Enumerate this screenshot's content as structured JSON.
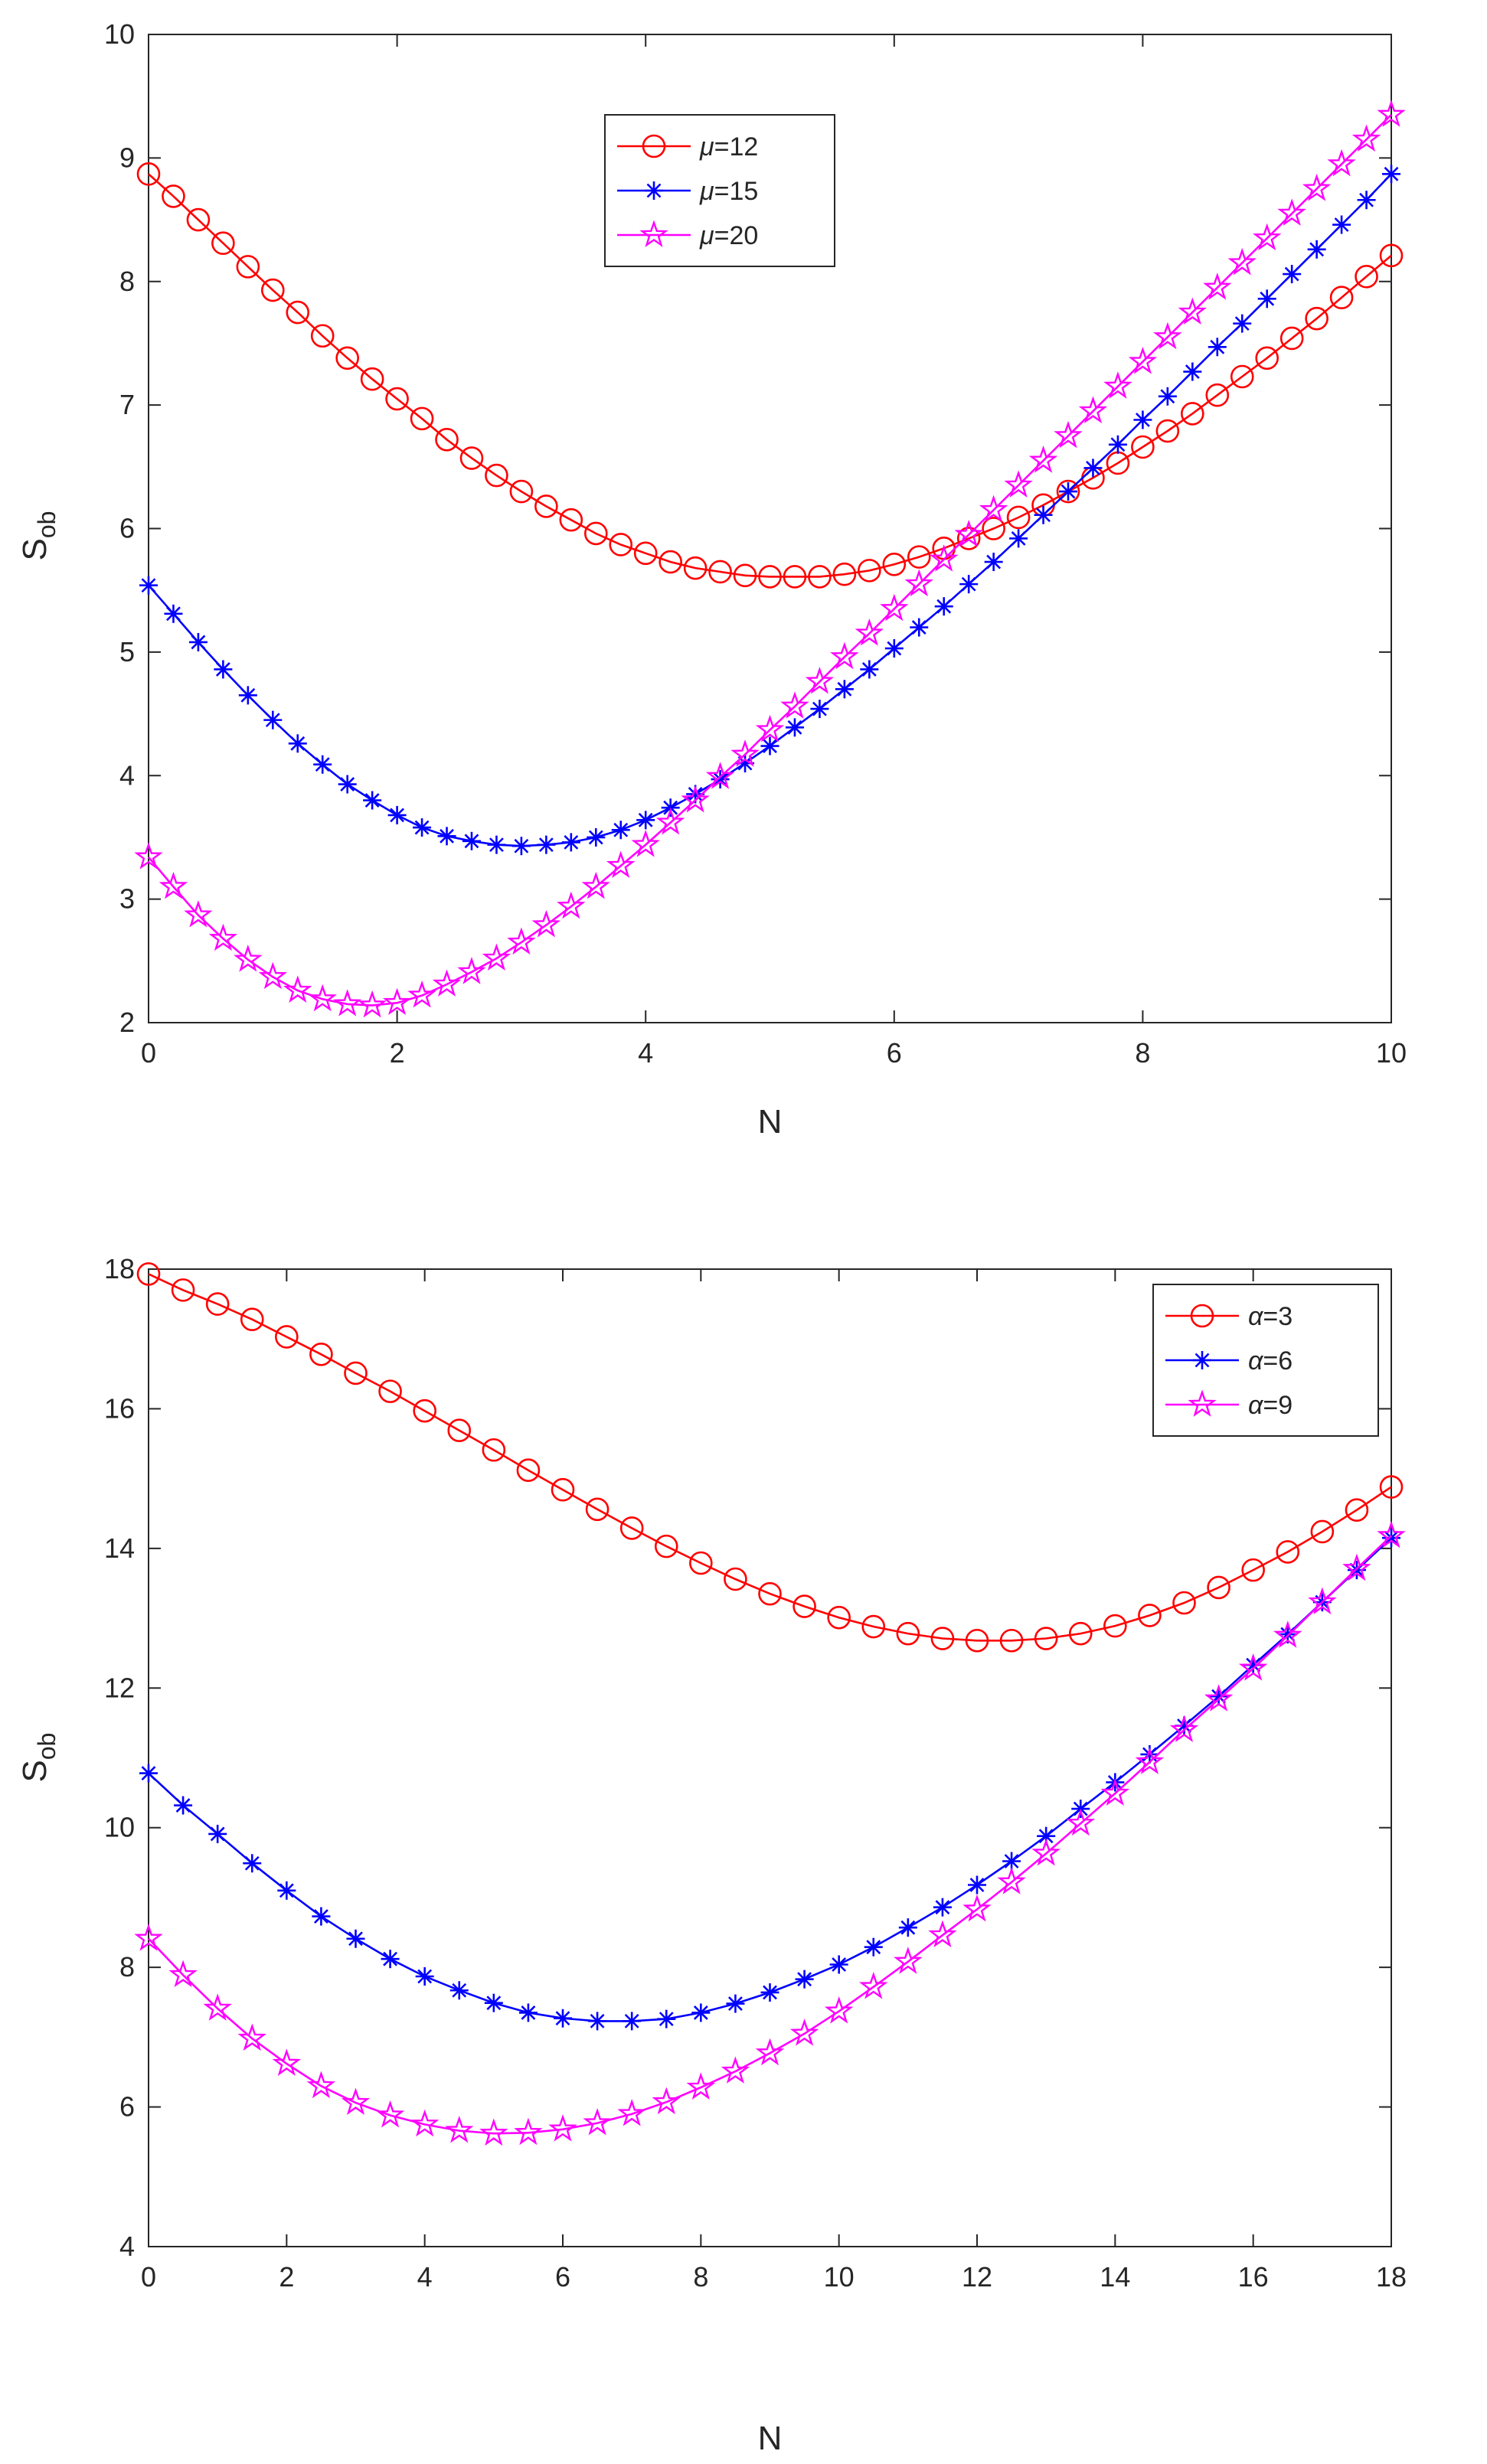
{
  "chart_data": [
    {
      "type": "line",
      "title": "",
      "xlabel": "N",
      "ylabel": "S",
      "ylabel_sub": "ob",
      "xlim": [
        0,
        10
      ],
      "ylim": [
        2,
        10
      ],
      "xticks": [
        0,
        2,
        4,
        6,
        8,
        10
      ],
      "yticks": [
        2,
        3,
        4,
        5,
        6,
        7,
        8,
        9,
        10
      ],
      "xtick_labels": [
        "0",
        "2",
        "4",
        "6",
        "8",
        "10"
      ],
      "ytick_labels": [
        "2",
        "3",
        "4",
        "5",
        "6",
        "7",
        "8",
        "9",
        "10"
      ],
      "grid": false,
      "legend_position": "top-center",
      "x": [
        0,
        0.2,
        0.4,
        0.6,
        0.8,
        1,
        1.2,
        1.4,
        1.6,
        1.8,
        2,
        2.2,
        2.4,
        2.6,
        2.8,
        3,
        3.2,
        3.4,
        3.6,
        3.8,
        4,
        4.2,
        4.4,
        4.6,
        4.8,
        5,
        5.2,
        5.4,
        5.6,
        5.8,
        6,
        6.2,
        6.4,
        6.6,
        6.8,
        7,
        7.2,
        7.4,
        7.6,
        7.8,
        8,
        8.2,
        8.4,
        8.6,
        8.8,
        9,
        9.2,
        9.4,
        9.6,
        9.8,
        10
      ],
      "series": [
        {
          "name": "μ=12",
          "prefix": "μ",
          "suffix": "=12",
          "color": "#ff0000",
          "marker": "circle",
          "values": [
            8.87,
            8.69,
            8.5,
            8.31,
            8.12,
            7.93,
            7.75,
            7.56,
            7.38,
            7.21,
            7.05,
            6.89,
            6.72,
            6.57,
            6.43,
            6.3,
            6.18,
            6.07,
            5.96,
            5.87,
            5.8,
            5.73,
            5.68,
            5.65,
            5.62,
            5.61,
            5.61,
            5.61,
            5.63,
            5.66,
            5.71,
            5.77,
            5.84,
            5.92,
            6.0,
            6.09,
            6.19,
            6.3,
            6.41,
            6.53,
            6.66,
            6.79,
            6.93,
            7.08,
            7.23,
            7.38,
            7.54,
            7.7,
            7.87,
            8.04,
            8.21
          ]
        },
        {
          "name": "μ=15",
          "prefix": "μ",
          "suffix": "=15",
          "color": "#0000ff",
          "marker": "asterisk",
          "values": [
            5.54,
            5.31,
            5.08,
            4.86,
            4.65,
            4.45,
            4.26,
            4.09,
            3.93,
            3.8,
            3.68,
            3.58,
            3.51,
            3.47,
            3.44,
            3.43,
            3.44,
            3.46,
            3.5,
            3.56,
            3.64,
            3.74,
            3.85,
            3.97,
            4.1,
            4.24,
            4.39,
            4.54,
            4.7,
            4.86,
            5.03,
            5.2,
            5.37,
            5.55,
            5.73,
            5.92,
            6.11,
            6.3,
            6.49,
            6.68,
            6.88,
            7.07,
            7.27,
            7.47,
            7.66,
            7.86,
            8.06,
            8.26,
            8.46,
            8.66,
            8.87
          ]
        },
        {
          "name": "μ=20",
          "prefix": "μ",
          "suffix": "=20",
          "color": "#ff00ff",
          "marker": "pentagram",
          "values": [
            3.34,
            3.1,
            2.87,
            2.68,
            2.51,
            2.37,
            2.26,
            2.19,
            2.15,
            2.14,
            2.16,
            2.22,
            2.31,
            2.41,
            2.52,
            2.65,
            2.79,
            2.94,
            3.1,
            3.27,
            3.44,
            3.62,
            3.8,
            3.99,
            4.17,
            4.37,
            4.56,
            4.76,
            4.96,
            5.15,
            5.35,
            5.55,
            5.75,
            5.95,
            6.15,
            6.35,
            6.55,
            6.75,
            6.95,
            7.15,
            7.35,
            7.55,
            7.75,
            7.95,
            8.15,
            8.35,
            8.55,
            8.75,
            8.95,
            9.15,
            9.35
          ]
        }
      ]
    },
    {
      "type": "line",
      "title": "",
      "xlabel": "N",
      "ylabel": "S",
      "ylabel_sub": "ob",
      "xlim": [
        0,
        18
      ],
      "ylim": [
        4,
        18
      ],
      "xticks": [
        0,
        2,
        4,
        6,
        8,
        10,
        12,
        14,
        16,
        18
      ],
      "yticks": [
        4,
        6,
        8,
        10,
        12,
        14,
        16,
        18
      ],
      "xtick_labels": [
        "0",
        "2",
        "4",
        "6",
        "8",
        "10",
        "12",
        "14",
        "16",
        "18"
      ],
      "ytick_labels": [
        "4",
        "6",
        "8",
        "10",
        "12",
        "14",
        "16",
        "18"
      ],
      "grid": false,
      "legend_position": "top-right",
      "x": [
        0,
        0.5,
        1,
        1.5,
        2,
        2.5,
        3,
        3.5,
        4,
        4.5,
        5,
        5.5,
        6,
        6.5,
        7,
        7.5,
        8,
        8.5,
        9,
        9.5,
        10,
        10.5,
        11,
        11.5,
        12,
        12.5,
        13,
        13.5,
        14,
        14.5,
        15,
        15.5,
        16,
        16.5,
        17,
        17.5,
        18
      ],
      "series": [
        {
          "name": "α=3",
          "prefix": "α",
          "suffix": "=3",
          "color": "#ff0000",
          "marker": "circle",
          "values": [
            17.93,
            17.7,
            17.5,
            17.28,
            17.03,
            16.78,
            16.51,
            16.25,
            15.97,
            15.69,
            15.41,
            15.12,
            14.84,
            14.56,
            14.29,
            14.03,
            13.79,
            13.56,
            13.35,
            13.17,
            13.01,
            12.88,
            12.78,
            12.71,
            12.68,
            12.68,
            12.71,
            12.78,
            12.89,
            13.04,
            13.22,
            13.44,
            13.69,
            13.95,
            14.24,
            14.55,
            14.88
          ]
        },
        {
          "name": "α=6",
          "prefix": "α",
          "suffix": "=6",
          "color": "#0000ff",
          "marker": "asterisk",
          "values": [
            10.78,
            10.32,
            9.91,
            9.49,
            9.1,
            8.73,
            8.41,
            8.12,
            7.87,
            7.67,
            7.49,
            7.35,
            7.27,
            7.23,
            7.23,
            7.26,
            7.35,
            7.48,
            7.64,
            7.83,
            8.04,
            8.29,
            8.57,
            8.86,
            9.18,
            9.52,
            9.88,
            10.27,
            10.65,
            11.05,
            11.46,
            11.88,
            12.33,
            12.77,
            13.23,
            13.69,
            14.15
          ]
        },
        {
          "name": "α=9",
          "prefix": "α",
          "suffix": "=9",
          "color": "#ff00ff",
          "marker": "pentagram",
          "values": [
            8.41,
            7.89,
            7.41,
            6.98,
            6.62,
            6.3,
            6.06,
            5.88,
            5.75,
            5.66,
            5.62,
            5.63,
            5.68,
            5.77,
            5.9,
            6.07,
            6.28,
            6.51,
            6.77,
            7.05,
            7.37,
            7.72,
            8.08,
            8.46,
            8.83,
            9.22,
            9.63,
            10.06,
            10.49,
            10.94,
            11.4,
            11.84,
            12.28,
            12.75,
            13.23,
            13.71,
            14.18
          ]
        }
      ]
    }
  ]
}
